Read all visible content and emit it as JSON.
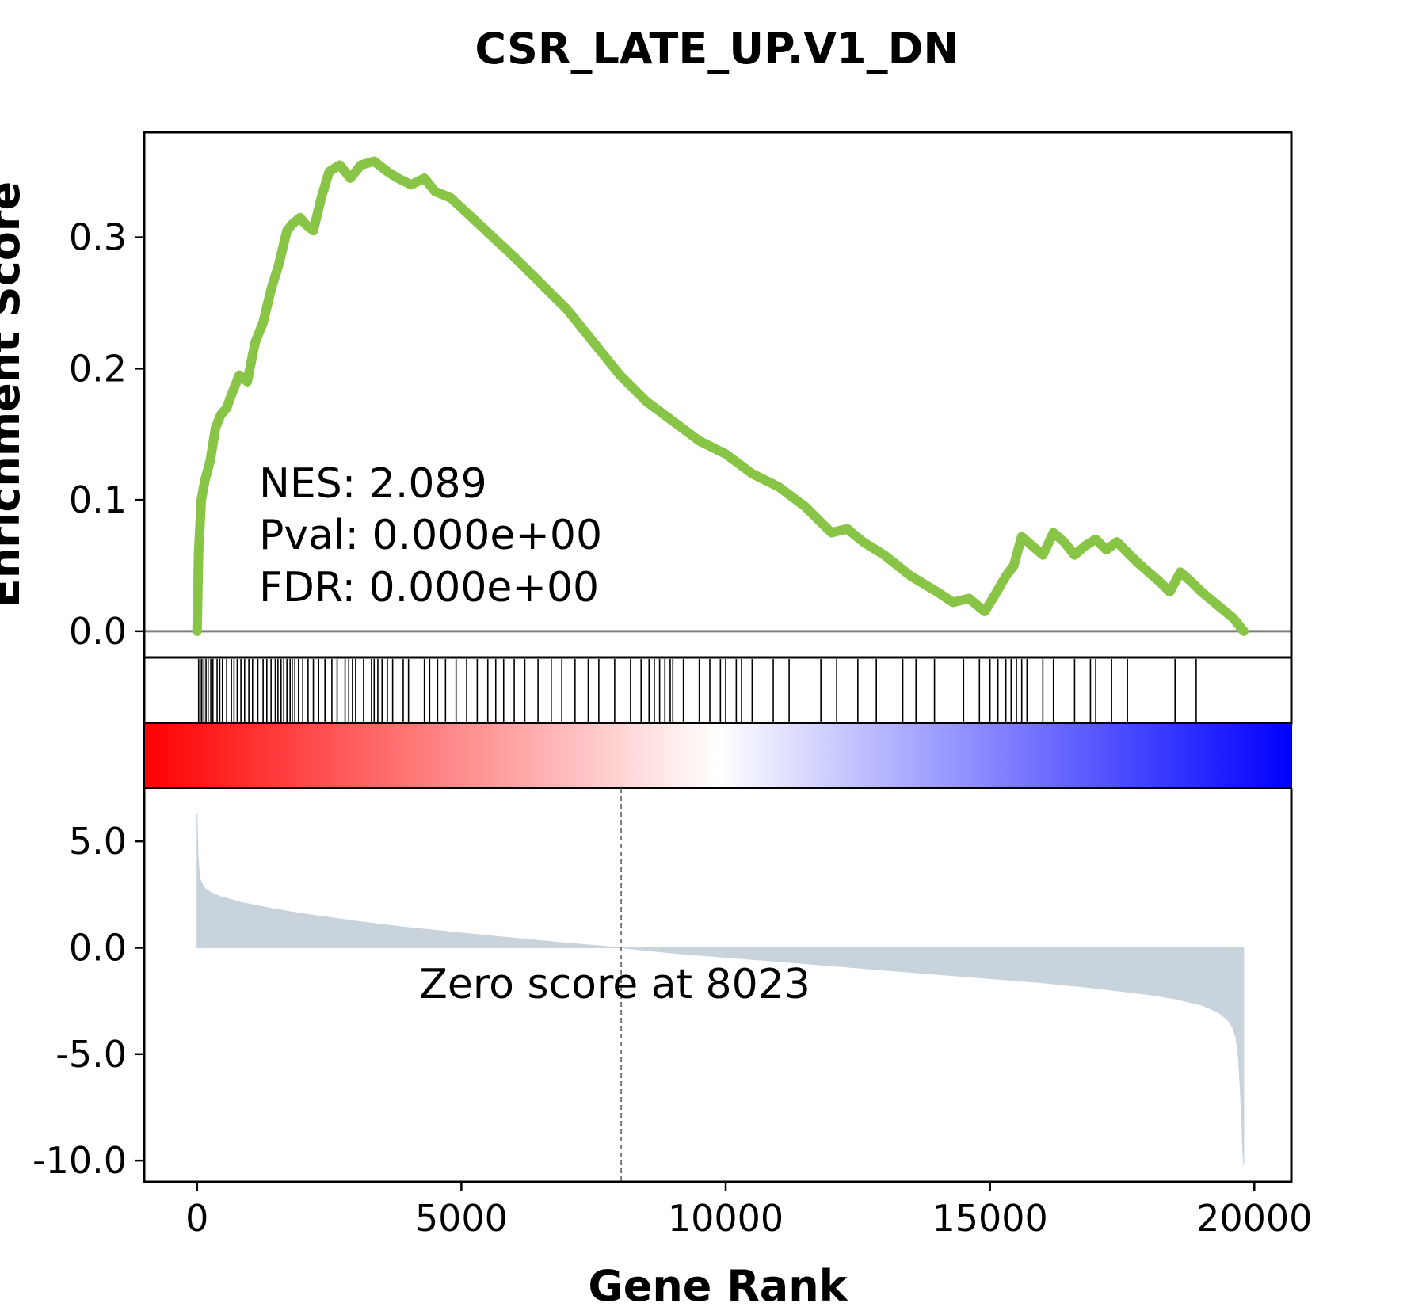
{
  "chart_data": {
    "type": "line",
    "title": "CSR_LATE_UP.V1_DN",
    "colors": {
      "es_line": "#88c546",
      "zero_line": "#808080",
      "hit": "#000000",
      "rank_fill": "#c9d3dc",
      "heat_pos": "#ff0000",
      "heat_mid": "#ffffff",
      "heat_neg": "#0000ff"
    },
    "enrichment_panel": {
      "ylabel": "Enrichment Score",
      "ylim": [
        -0.02,
        0.38
      ],
      "yticks": [
        0.0,
        0.1,
        0.2,
        0.3
      ],
      "ytick_labels": [
        "0.0",
        "0.1",
        "0.2",
        "0.3"
      ],
      "annotation": {
        "nes": "NES: 2.089",
        "pval": "Pval: 0.000e+00",
        "fdr": "FDR: 0.000e+00"
      },
      "series": {
        "x": [
          0,
          30,
          80,
          150,
          250,
          350,
          450,
          560,
          650,
          800,
          950,
          1100,
          1250,
          1400,
          1550,
          1700,
          1800,
          1950,
          2050,
          2200,
          2350,
          2500,
          2700,
          2900,
          3100,
          3350,
          3600,
          3800,
          4050,
          4300,
          4500,
          4800,
          5200,
          5600,
          6000,
          6500,
          7000,
          7500,
          8000,
          8500,
          9000,
          9500,
          10000,
          10500,
          11000,
          11500,
          12000,
          12300,
          12600,
          13000,
          13500,
          14000,
          14300,
          14600,
          14900,
          15100,
          15300,
          15450,
          15600,
          15800,
          16000,
          16200,
          16400,
          16600,
          16800,
          17000,
          17200,
          17400,
          17600,
          17800,
          18000,
          18200,
          18400,
          18600,
          18800,
          19000,
          19300,
          19600,
          19800
        ],
        "y": [
          0.0,
          0.06,
          0.1,
          0.115,
          0.13,
          0.155,
          0.165,
          0.17,
          0.18,
          0.195,
          0.19,
          0.22,
          0.235,
          0.26,
          0.28,
          0.305,
          0.31,
          0.315,
          0.31,
          0.305,
          0.33,
          0.35,
          0.355,
          0.345,
          0.355,
          0.358,
          0.35,
          0.345,
          0.34,
          0.345,
          0.335,
          0.33,
          0.315,
          0.3,
          0.285,
          0.265,
          0.245,
          0.22,
          0.195,
          0.175,
          0.16,
          0.145,
          0.135,
          0.12,
          0.11,
          0.095,
          0.075,
          0.078,
          0.068,
          0.058,
          0.042,
          0.03,
          0.022,
          0.025,
          0.015,
          0.028,
          0.042,
          0.05,
          0.072,
          0.065,
          0.058,
          0.075,
          0.068,
          0.058,
          0.065,
          0.07,
          0.062,
          0.068,
          0.06,
          0.052,
          0.045,
          0.038,
          0.03,
          0.045,
          0.038,
          0.03,
          0.02,
          0.01,
          0.0
        ]
      },
      "hits": [
        30,
        60,
        90,
        130,
        170,
        210,
        260,
        300,
        380,
        430,
        480,
        560,
        650,
        700,
        760,
        830,
        900,
        980,
        1050,
        1150,
        1250,
        1320,
        1400,
        1480,
        1530,
        1590,
        1640,
        1700,
        1760,
        1800,
        1850,
        1920,
        2000,
        2100,
        2200,
        2300,
        2420,
        2550,
        2650,
        2800,
        2870,
        2940,
        3000,
        3150,
        3300,
        3350,
        3420,
        3500,
        3600,
        3700,
        3900,
        4000,
        4300,
        4400,
        4550,
        4700,
        4900,
        5100,
        5300,
        5500,
        5650,
        5800,
        6000,
        6200,
        6450,
        6700,
        6900,
        7150,
        7400,
        7600,
        7900,
        8200,
        8400,
        8550,
        8650,
        8750,
        8850,
        8950,
        9000,
        9200,
        9500,
        9700,
        9900,
        10000,
        10200,
        10300,
        10500,
        10900,
        11200,
        11800,
        12100,
        12500,
        12850,
        13350,
        13600,
        13950,
        14500,
        14800,
        15000,
        15150,
        15300,
        15400,
        15500,
        15600,
        15700,
        16000,
        16200,
        16600,
        16900,
        17000,
        17300,
        17600,
        18500,
        18900
      ]
    },
    "heatmap": {
      "gradient": [
        "#ff0000",
        "#ffffff",
        "#0000ff"
      ]
    },
    "rank_panel": {
      "xlabel": "Gene Rank",
      "xlim": [
        -1000,
        20700
      ],
      "xticks": [
        0,
        5000,
        10000,
        15000,
        20000
      ],
      "xtick_labels": [
        "0",
        "5000",
        "10000",
        "15000",
        "20000"
      ],
      "ylim": [
        -11,
        7.5
      ],
      "yticks": [
        5.0,
        0.0,
        -5.0,
        -10.0
      ],
      "ytick_labels": [
        "5.0",
        "0.0",
        "-5.0",
        "-10.0"
      ],
      "zero_cross_rank": 8023,
      "zero_label": "Zero score at 8023",
      "series": {
        "x": [
          0,
          20,
          40,
          60,
          100,
          150,
          200,
          300,
          450,
          600,
          800,
          1000,
          1400,
          2000,
          3000,
          4000,
          5000,
          6000,
          7000,
          8023,
          9000,
          10000,
          11000,
          12000,
          13000,
          14000,
          15000,
          16000,
          17000,
          18000,
          18500,
          19000,
          19300,
          19500,
          19600,
          19650,
          19700,
          19730,
          19760,
          19780,
          19800
        ],
        "y": [
          6.3,
          4.2,
          3.6,
          3.2,
          3.0,
          2.8,
          2.7,
          2.55,
          2.4,
          2.3,
          2.15,
          2.05,
          1.85,
          1.6,
          1.25,
          0.95,
          0.7,
          0.45,
          0.22,
          0.0,
          -0.25,
          -0.45,
          -0.65,
          -0.85,
          -1.05,
          -1.25,
          -1.45,
          -1.65,
          -1.9,
          -2.2,
          -2.4,
          -2.7,
          -3.0,
          -3.4,
          -3.8,
          -4.2,
          -5.2,
          -6.5,
          -8.0,
          -9.5,
          -10.2
        ]
      }
    }
  }
}
